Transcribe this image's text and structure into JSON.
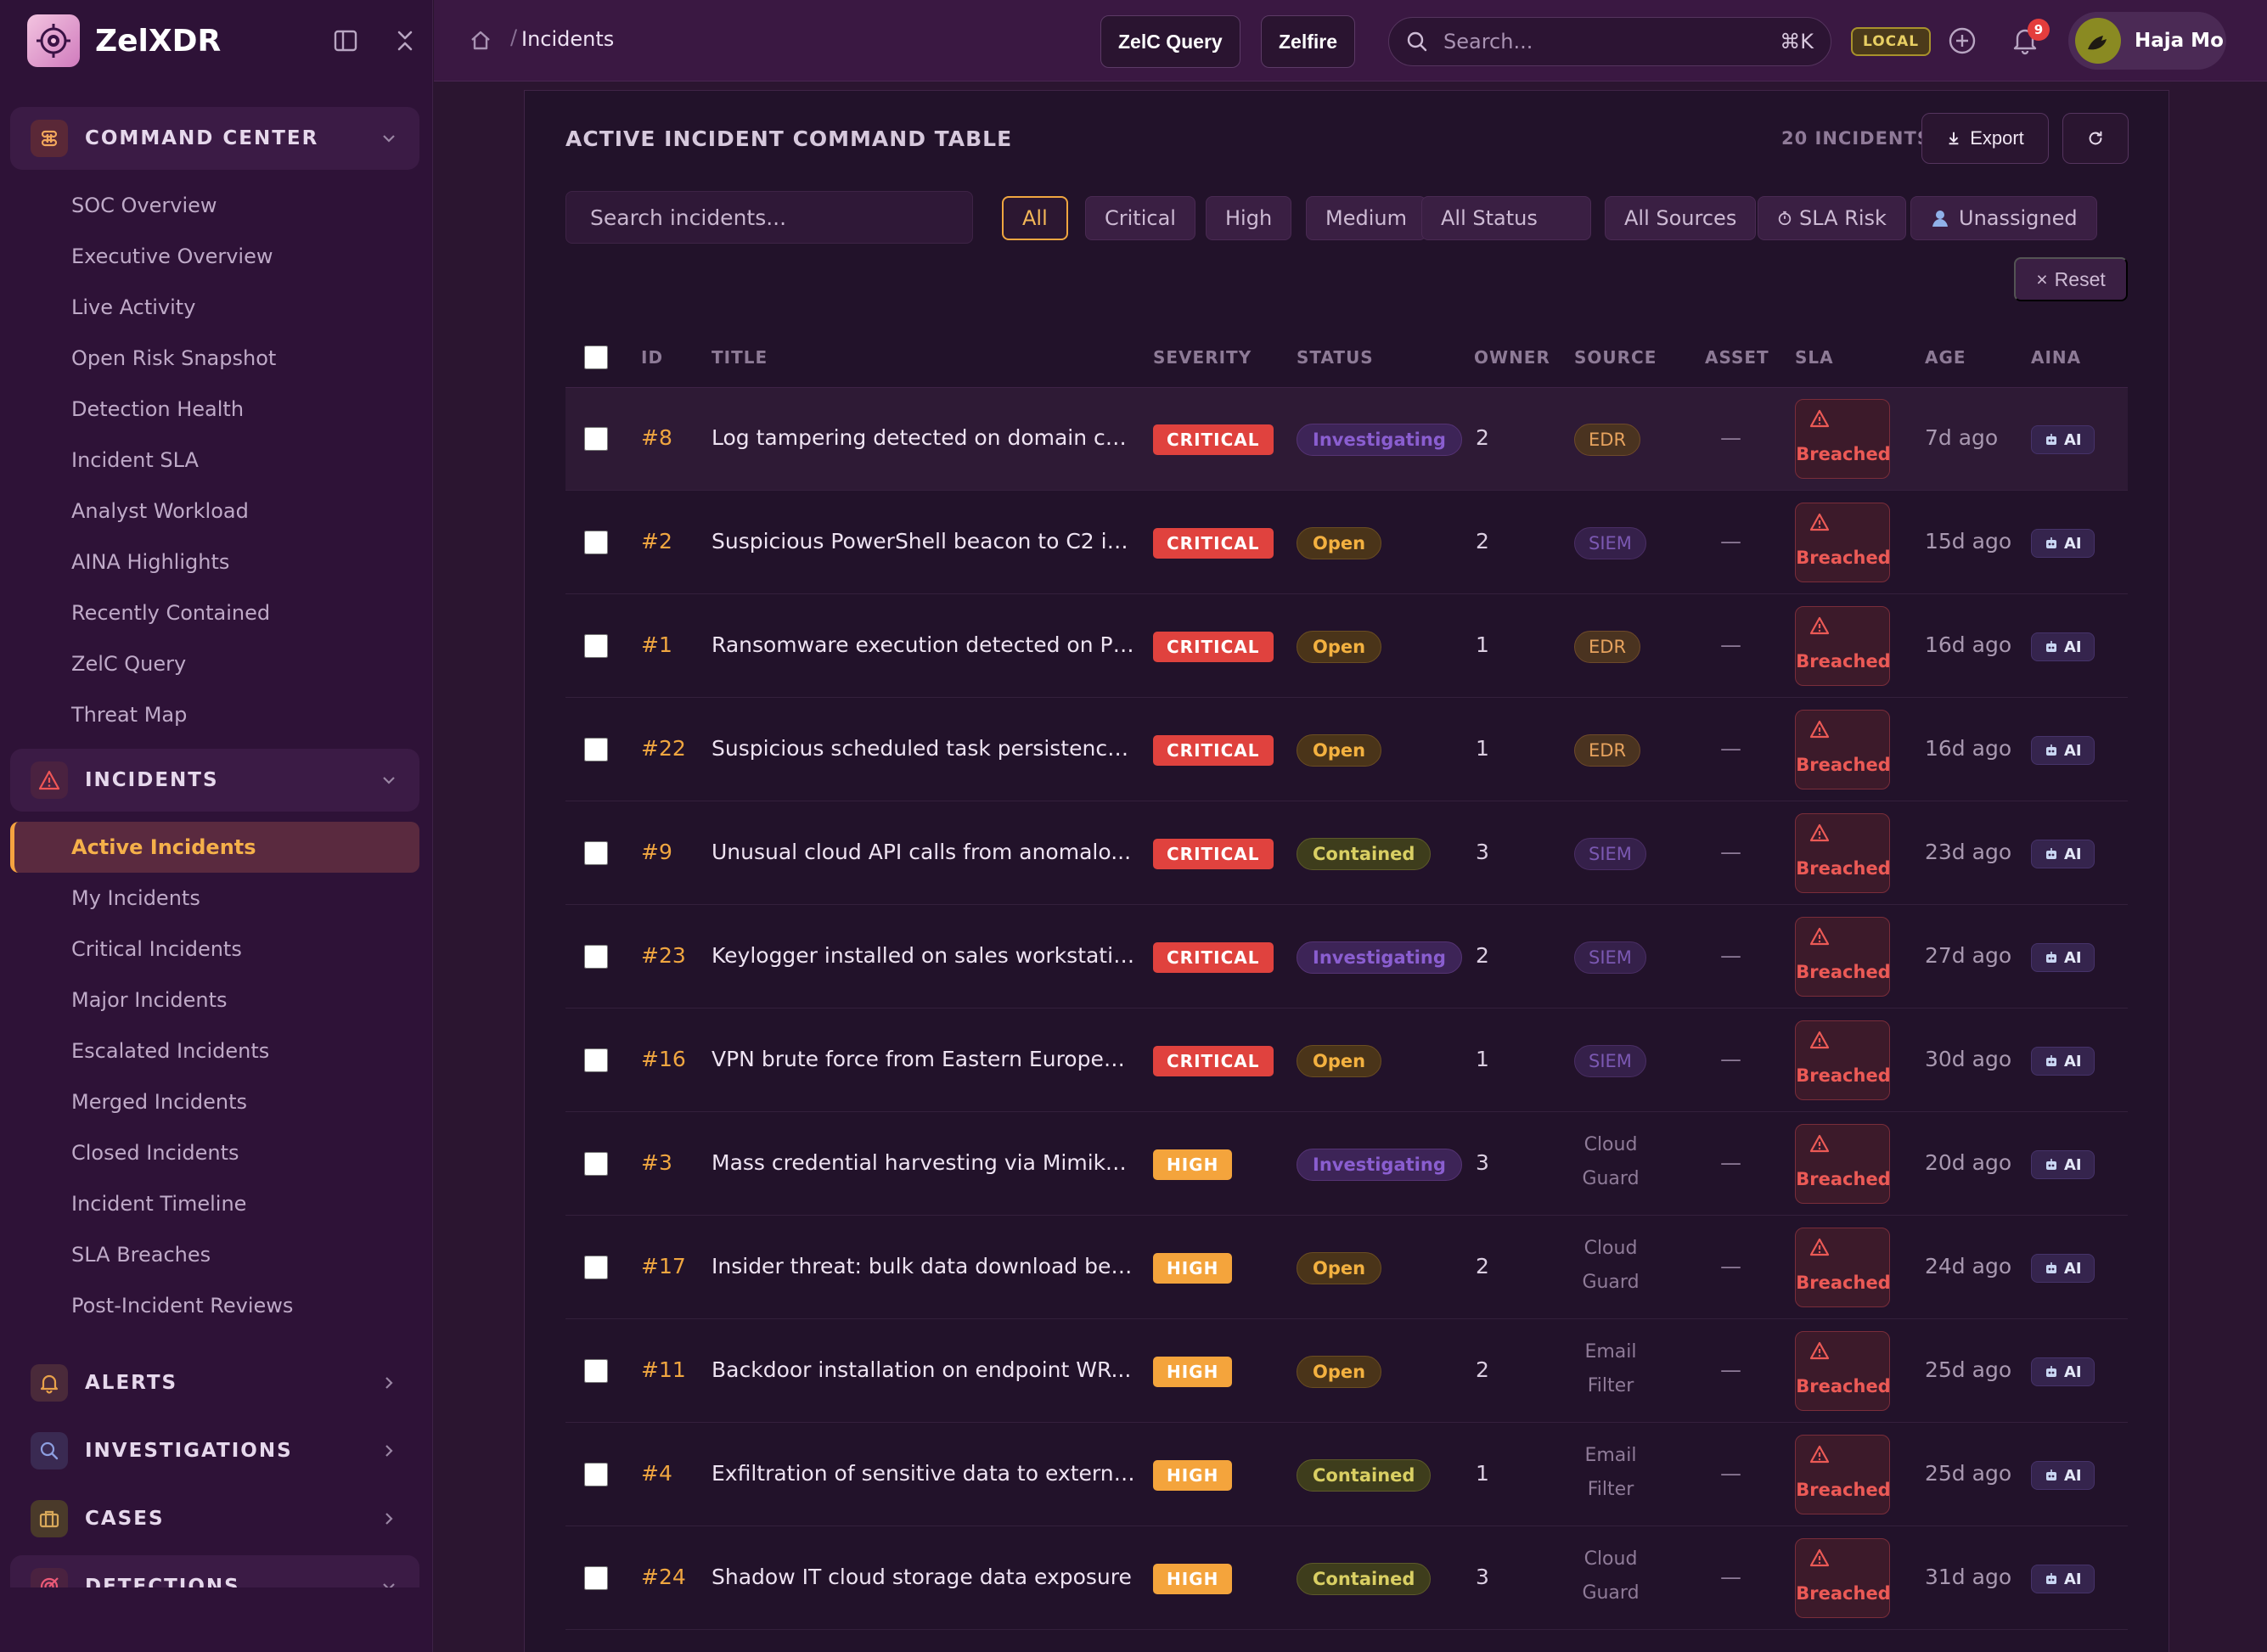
{
  "app": {
    "name": "ZelXDR"
  },
  "sidebar": {
    "sections": [
      {
        "label": "COMMAND CENTER",
        "icon": "command-icon",
        "expanded": true,
        "items": [
          "SOC Overview",
          "Executive Overview",
          "Live Activity",
          "Open Risk Snapshot",
          "Detection Health",
          "Incident SLA",
          "Analyst Workload",
          "AINA Highlights",
          "Recently Contained",
          "ZelC Query",
          "Threat Map"
        ]
      },
      {
        "label": "INCIDENTS",
        "icon": "warning-icon",
        "expanded": true,
        "items": [
          "Active Incidents",
          "My Incidents",
          "Critical Incidents",
          "Major Incidents",
          "Escalated Incidents",
          "Merged Incidents",
          "Closed Incidents",
          "Incident Timeline",
          "SLA Breaches",
          "Post-Incident Reviews"
        ],
        "active_item": "Active Incidents"
      },
      {
        "label": "ALERTS",
        "icon": "bell-icon",
        "expanded": false,
        "items": []
      },
      {
        "label": "INVESTIGATIONS",
        "icon": "magnifier-icon",
        "expanded": false,
        "items": []
      },
      {
        "label": "CASES",
        "icon": "briefcase-icon",
        "expanded": false,
        "items": []
      },
      {
        "label": "DETECTIONS",
        "icon": "target-icon",
        "expanded": true,
        "items": []
      }
    ]
  },
  "topbar": {
    "breadcrumb": "Incidents",
    "query_button": "ZelC Query",
    "zelfire_button": "Zelfire",
    "search_placeholder": "Search...",
    "search_shortcut": "⌘K",
    "env_badge": "LOCAL",
    "notification_count": "9",
    "user_name": "Haja Mo"
  },
  "panel": {
    "title": "ACTIVE INCIDENT COMMAND TABLE",
    "incident_count": "20 INCIDENTS",
    "export_label": "Export",
    "search_placeholder": "Search incidents...",
    "filters": {
      "severity": [
        "All",
        "Critical",
        "High",
        "Medium"
      ],
      "active_severity": "All",
      "status": "All Status",
      "sources": "All Sources",
      "sla_risk": "SLA Risk",
      "unassigned": "Unassigned",
      "reset": "Reset"
    },
    "columns": [
      "ID",
      "TITLE",
      "SEVERITY",
      "STATUS",
      "OWNER",
      "SOURCE",
      "ASSET",
      "SLA",
      "AGE",
      "AINA"
    ]
  },
  "incidents": [
    {
      "id": "#8",
      "title": "Log tampering detected on domain co...",
      "severity": "CRITICAL",
      "status": "Investigating",
      "owner": "2",
      "source": "EDR",
      "source_kind": "edr",
      "asset": "—",
      "sla": "Breached",
      "age": "7d ago",
      "aina": "AI"
    },
    {
      "id": "#2",
      "title": "Suspicious PowerShell beacon to C2 inf...",
      "severity": "CRITICAL",
      "status": "Open",
      "owner": "2",
      "source": "SIEM",
      "source_kind": "siem",
      "asset": "—",
      "sla": "Breached",
      "age": "15d ago",
      "aina": "AI"
    },
    {
      "id": "#1",
      "title": "Ransomware execution detected on PR...",
      "severity": "CRITICAL",
      "status": "Open",
      "owner": "1",
      "source": "EDR",
      "source_kind": "edr",
      "asset": "—",
      "sla": "Breached",
      "age": "16d ago",
      "aina": "AI"
    },
    {
      "id": "#22",
      "title": "Suspicious scheduled task persistence ...",
      "severity": "CRITICAL",
      "status": "Open",
      "owner": "1",
      "source": "EDR",
      "source_kind": "edr",
      "asset": "—",
      "sla": "Breached",
      "age": "16d ago",
      "aina": "AI"
    },
    {
      "id": "#9",
      "title": "Unusual cloud API calls from anomalo...",
      "severity": "CRITICAL",
      "status": "Contained",
      "owner": "3",
      "source": "SIEM",
      "source_kind": "siem",
      "asset": "—",
      "sla": "Breached",
      "age": "23d ago",
      "aina": "AI"
    },
    {
      "id": "#23",
      "title": "Keylogger installed on sales workstation",
      "severity": "CRITICAL",
      "status": "Investigating",
      "owner": "2",
      "source": "SIEM",
      "source_kind": "siem",
      "asset": "—",
      "sla": "Breached",
      "age": "27d ago",
      "aina": "AI"
    },
    {
      "id": "#16",
      "title": "VPN brute force from Eastern European...",
      "severity": "CRITICAL",
      "status": "Open",
      "owner": "1",
      "source": "SIEM",
      "source_kind": "siem",
      "asset": "—",
      "sla": "Breached",
      "age": "30d ago",
      "aina": "AI"
    },
    {
      "id": "#3",
      "title": "Mass credential harvesting via Mimikatz",
      "severity": "HIGH",
      "status": "Investigating",
      "owner": "3",
      "source": "Cloud Guard",
      "source_kind": "text",
      "asset": "—",
      "sla": "Breached",
      "age": "20d ago",
      "aina": "AI"
    },
    {
      "id": "#17",
      "title": "Insider threat: bulk data download bef...",
      "severity": "HIGH",
      "status": "Open",
      "owner": "2",
      "source": "Cloud Guard",
      "source_kind": "text",
      "asset": "—",
      "sla": "Breached",
      "age": "24d ago",
      "aina": "AI"
    },
    {
      "id": "#11",
      "title": "Backdoor installation on endpoint WR...",
      "severity": "HIGH",
      "status": "Open",
      "owner": "2",
      "source": "Email Filter",
      "source_kind": "text",
      "asset": "—",
      "sla": "Breached",
      "age": "25d ago",
      "aina": "AI"
    },
    {
      "id": "#4",
      "title": "Exfiltration of sensitive data to externa...",
      "severity": "HIGH",
      "status": "Contained",
      "owner": "1",
      "source": "Email Filter",
      "source_kind": "text",
      "asset": "—",
      "sla": "Breached",
      "age": "25d ago",
      "aina": "AI"
    },
    {
      "id": "#24",
      "title": "Shadow IT cloud storage data exposure",
      "severity": "HIGH",
      "status": "Contained",
      "owner": "3",
      "source": "Cloud Guard",
      "source_kind": "text",
      "asset": "—",
      "sla": "Breached",
      "age": "31d ago",
      "aina": "AI"
    }
  ],
  "colors": {
    "accent": "#f0a640",
    "critical": "#e0423e",
    "high": "#f4a43c",
    "breached": "#ec5a56"
  }
}
